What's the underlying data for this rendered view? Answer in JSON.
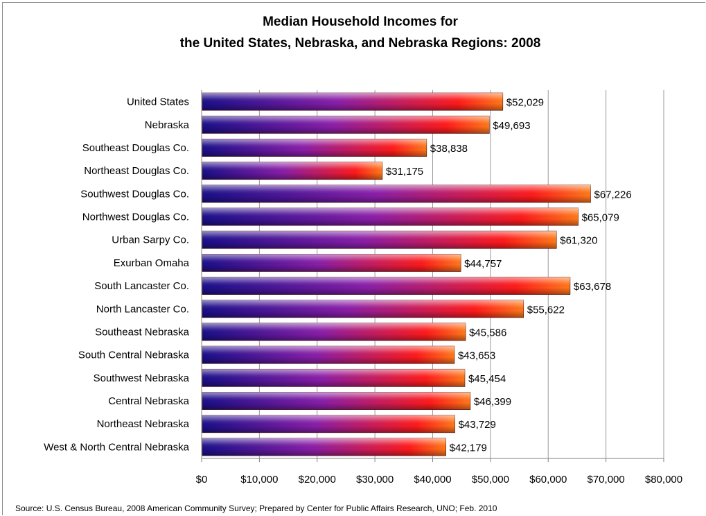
{
  "chart_data": {
    "type": "bar",
    "orientation": "horizontal",
    "title_lines": [
      "Median Household Incomes for",
      "the United States, Nebraska, and Nebraska Regions: 2008"
    ],
    "categories": [
      "United States",
      "Nebraska",
      "Southeast Douglas Co.",
      "Northeast Douglas Co.",
      "Southwest Douglas Co.",
      "Northwest Douglas Co.",
      "Urban Sarpy Co.",
      "Exurban Omaha",
      "South Lancaster Co.",
      "North Lancaster Co.",
      "Southeast Nebraska",
      "South Central Nebraska",
      "Southwest Nebraska",
      "Central Nebraska",
      "Northeast Nebraska",
      "West & North Central Nebraska"
    ],
    "values": [
      52029,
      49693,
      38838,
      31175,
      67226,
      65079,
      61320,
      44757,
      63678,
      55622,
      45586,
      43653,
      45454,
      46399,
      43729,
      42179
    ],
    "data_labels": [
      "$52,029",
      "$49,693",
      "$38,838",
      "$31,175",
      "$67,226",
      "$65,079",
      "$61,320",
      "$44,757",
      "$63,678",
      "$55,622",
      "$45,586",
      "$43,653",
      "$45,454",
      "$46,399",
      "$43,729",
      "$42,179"
    ],
    "x_ticks": [
      0,
      10000,
      20000,
      30000,
      40000,
      50000,
      60000,
      70000,
      80000
    ],
    "x_tick_labels": [
      "$0",
      "$10,000",
      "$20,000",
      "$30,000",
      "$40,000",
      "$50,000",
      "$60,000",
      "$70,000",
      "$80,000"
    ],
    "xlim": [
      0,
      80000
    ],
    "xlabel": "",
    "ylabel": "",
    "grid": "vertical",
    "legend": "none",
    "colors": {
      "bar_start": "#1a0f8a",
      "bar_mid": "#8a1ea8",
      "bar_end": "#ff1a1a",
      "bar_cap": "#ff7a1a",
      "grid": "#9a9a9a"
    }
  },
  "source": "Source: U.S. Census Bureau, 2008 American Community Survey; Prepared by Center for Public Affairs Research, UNO; Feb. 2010"
}
